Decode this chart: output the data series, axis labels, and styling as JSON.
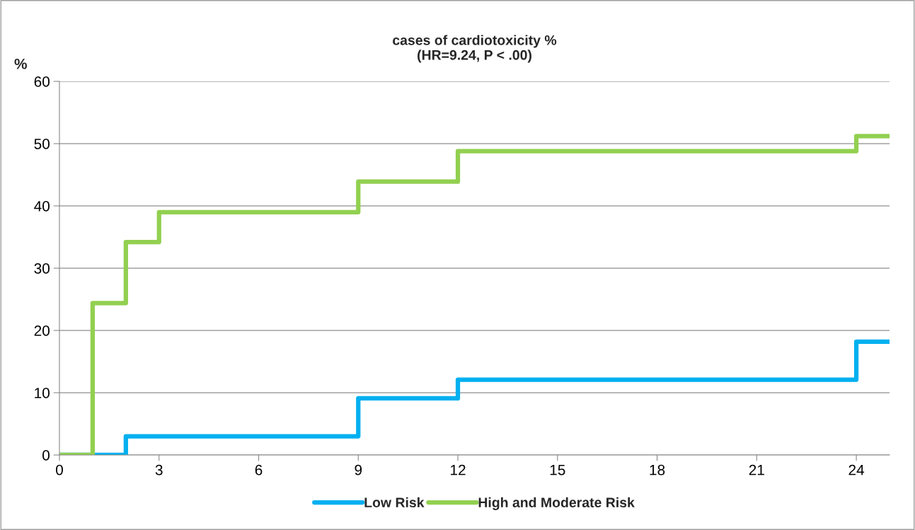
{
  "chart_data": {
    "type": "step",
    "title": "cases of cardiotoxicity %",
    "subtitle": "(HR=9.24, P < .00)",
    "ylabel": "%",
    "xlim": [
      0,
      25
    ],
    "xticks": [
      0,
      3,
      6,
      9,
      12,
      15,
      18,
      21,
      24
    ],
    "ylim": [
      0,
      60
    ],
    "yticks": [
      0,
      10,
      20,
      30,
      40,
      50,
      60
    ],
    "grid": "y",
    "legend": "bottom",
    "line_style": "solid",
    "marker": "none",
    "series": [
      {
        "name": "Low Risk",
        "color": "#00b0f0",
        "x": [
          0,
          2,
          9,
          12,
          24,
          25
        ],
        "values": [
          0,
          3.0,
          9.1,
          12.1,
          18.2,
          18.2
        ]
      },
      {
        "name": "High and Moderate Risk",
        "color": "#92d050",
        "x": [
          0,
          1,
          2,
          3,
          9,
          12,
          24,
          25
        ],
        "values": [
          0,
          24.4,
          34.2,
          39.0,
          43.9,
          48.8,
          51.2,
          51.2
        ]
      }
    ]
  }
}
